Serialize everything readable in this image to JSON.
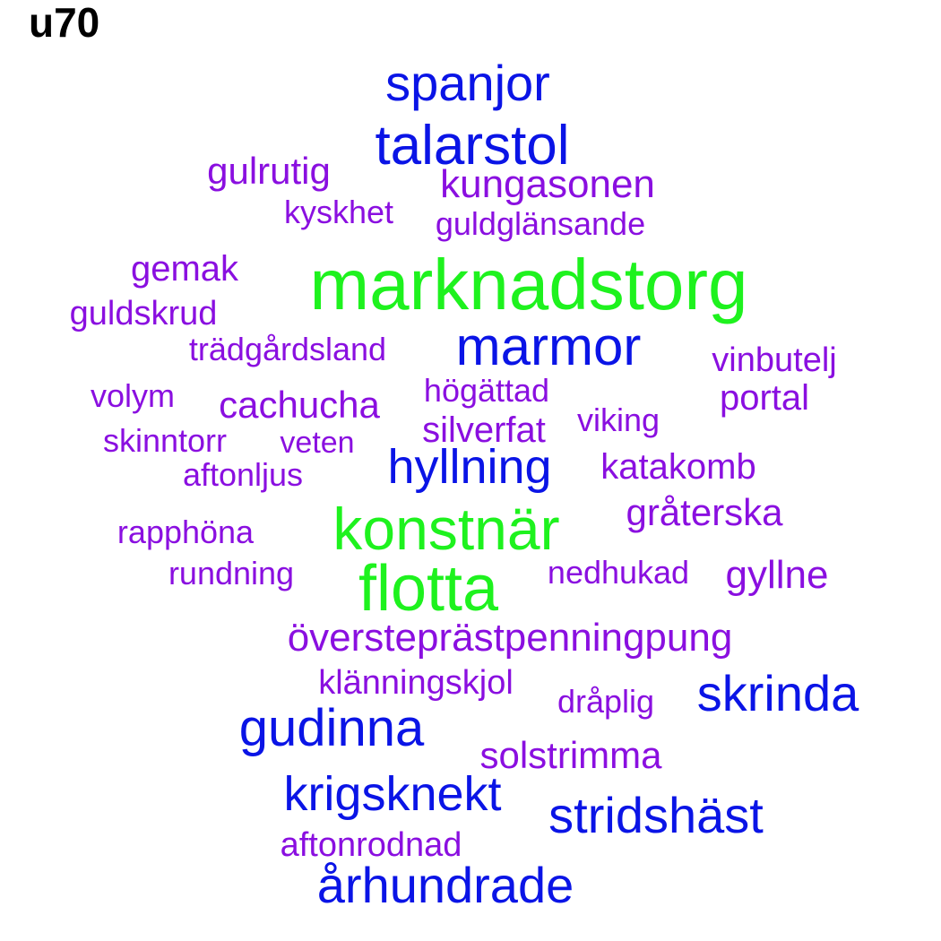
{
  "title": "u70",
  "colors": {
    "green": "#1ef21e",
    "blue": "#0a14e6",
    "purple": "#8a0fe0"
  },
  "words": [
    {
      "text": "marknadstorg",
      "tier": "green"
    },
    {
      "text": "konstnär",
      "tier": "green"
    },
    {
      "text": "flotta",
      "tier": "green"
    },
    {
      "text": "spanjor",
      "tier": "blue"
    },
    {
      "text": "talarstol",
      "tier": "blue"
    },
    {
      "text": "marmor",
      "tier": "blue"
    },
    {
      "text": "hyllning",
      "tier": "blue"
    },
    {
      "text": "skrinda",
      "tier": "blue"
    },
    {
      "text": "gudinna",
      "tier": "blue"
    },
    {
      "text": "krigsknekt",
      "tier": "blue"
    },
    {
      "text": "stridshäst",
      "tier": "blue"
    },
    {
      "text": "århundrade",
      "tier": "blue"
    },
    {
      "text": "gulrutig",
      "tier": "purple"
    },
    {
      "text": "kungasonen",
      "tier": "purple"
    },
    {
      "text": "kyskhet",
      "tier": "purple"
    },
    {
      "text": "guldglänsande",
      "tier": "purple"
    },
    {
      "text": "gemak",
      "tier": "purple"
    },
    {
      "text": "guldskrud",
      "tier": "purple"
    },
    {
      "text": "trädgårdsland",
      "tier": "purple"
    },
    {
      "text": "vinbutelj",
      "tier": "purple"
    },
    {
      "text": "volym",
      "tier": "purple"
    },
    {
      "text": "cachucha",
      "tier": "purple"
    },
    {
      "text": "högättad",
      "tier": "purple"
    },
    {
      "text": "portal",
      "tier": "purple"
    },
    {
      "text": "silverfat",
      "tier": "purple"
    },
    {
      "text": "viking",
      "tier": "purple"
    },
    {
      "text": "skinntorr",
      "tier": "purple"
    },
    {
      "text": "veten",
      "tier": "purple"
    },
    {
      "text": "aftonljus",
      "tier": "purple"
    },
    {
      "text": "katakomb",
      "tier": "purple"
    },
    {
      "text": "gråterska",
      "tier": "purple"
    },
    {
      "text": "rapphöna",
      "tier": "purple"
    },
    {
      "text": "rundning",
      "tier": "purple"
    },
    {
      "text": "nedhukad",
      "tier": "purple"
    },
    {
      "text": "gyllne",
      "tier": "purple"
    },
    {
      "text": "översteprästpenningpung",
      "tier": "purple"
    },
    {
      "text": "klänningskjol",
      "tier": "purple"
    },
    {
      "text": "dråplig",
      "tier": "purple"
    },
    {
      "text": "solstrimma",
      "tier": "purple"
    },
    {
      "text": "aftonrodnad",
      "tier": "purple"
    }
  ]
}
